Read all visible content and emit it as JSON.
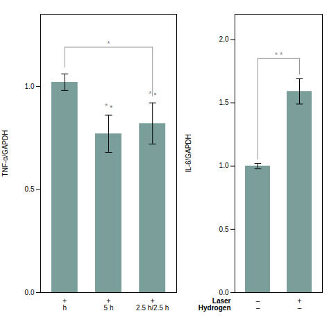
{
  "chart_data": [
    {
      "type": "bar",
      "ylabel": "TNF-α/GAPDH",
      "categories": [
        "+\nh",
        "+\n5 h",
        "+\n2.5 h/2.5 h"
      ],
      "values": [
        1.02,
        0.77,
        0.82
      ],
      "errors": [
        0.04,
        0.09,
        0.1
      ],
      "color": "#7a9e9a",
      "ylim": [
        0,
        1.35
      ],
      "yticks": [
        {
          "value": 0,
          "label": "0.0"
        },
        0.5,
        {
          "value": 1,
          "label": "1.0"
        }
      ],
      "sig_labels": [
        null,
        "* •",
        "* •"
      ],
      "bracket": {
        "y": 1.19,
        "label": "*"
      },
      "sig_color": "#888888"
    },
    {
      "type": "bar",
      "ylabel": "IL-6/GAPDH",
      "categories": [
        "–\n–",
        "+\n–"
      ],
      "row_labels": [
        "Laser",
        "Hydrogen"
      ],
      "values": [
        1.0,
        1.59
      ],
      "errors": [
        0.02,
        0.1
      ],
      "color": "#7a9e9a",
      "ylim": [
        0.0,
        2.2
      ],
      "yticks": [
        {
          "value": 0,
          "label": "0.0"
        },
        0.5,
        {
          "value": 1,
          "label": "1.0"
        },
        1.5,
        {
          "value": 2,
          "label": "2.0"
        }
      ],
      "bracket": {
        "y": 1.85,
        "label": "* *"
      },
      "sig_color": "#888888"
    }
  ]
}
